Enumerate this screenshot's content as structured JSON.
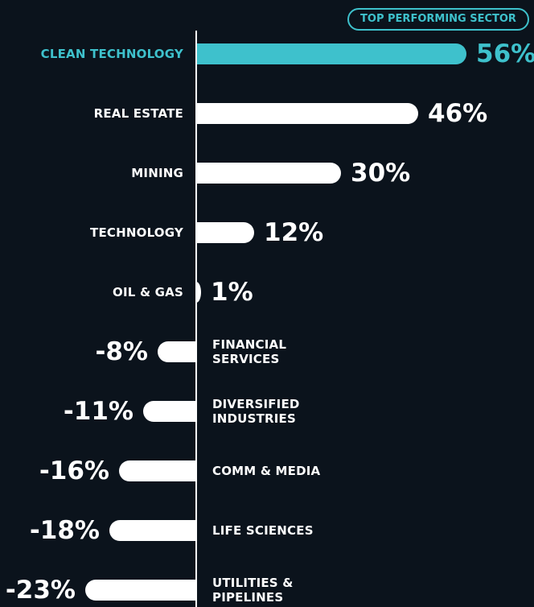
{
  "chart_data": {
    "type": "bar",
    "orientation": "horizontal",
    "annotation": "TOP PERFORMING SECTOR",
    "categories": [
      "CLEAN TECHNOLOGY",
      "REAL ESTATE",
      "MINING",
      "TECHNOLOGY",
      "OIL & GAS",
      "FINANCIAL SERVICES",
      "DIVERSIFIED INDUSTRIES",
      "COMM & MEDIA",
      "LIFE SCIENCES",
      "UTILITIES & PIPELINES"
    ],
    "values": [
      56,
      46,
      30,
      12,
      1,
      -8,
      -11,
      -16,
      -18,
      -23
    ],
    "value_labels": [
      "56%",
      "46%",
      "30%",
      "12%",
      "1%",
      "-8%",
      "-11%",
      "-16%",
      "-18%",
      "-23%"
    ],
    "colors": [
      "#3ec1cc",
      "#ffffff",
      "#ffffff",
      "#ffffff",
      "#ffffff",
      "#ffffff",
      "#ffffff",
      "#ffffff",
      "#ffffff",
      "#ffffff"
    ],
    "xlim": [
      -40,
      70
    ]
  }
}
